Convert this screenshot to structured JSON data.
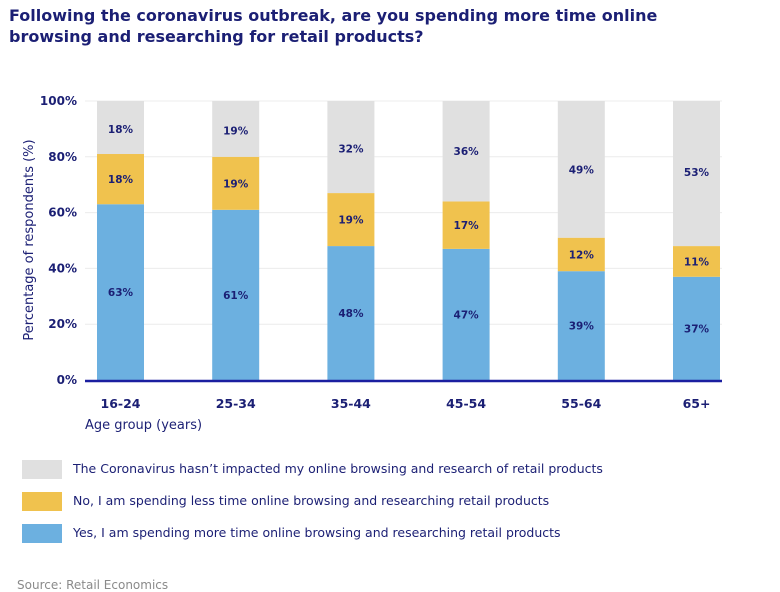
{
  "chart_data": {
    "type": "bar",
    "stacked": true,
    "title": "Following the coronavirus outbreak, are you spending more time online browsing and researching for retail products?",
    "xlabel": "Age group (years)",
    "ylabel": "Percentage of respondents (%)",
    "ylim": [
      0,
      100
    ],
    "yticks": [
      "0%",
      "20%",
      "40%",
      "60%",
      "80%",
      "100%"
    ],
    "grid": true,
    "legend_position": "bottom",
    "categories": [
      "16-24",
      "25-34",
      "35-44",
      "45-54",
      "55-64",
      "65+"
    ],
    "series": [
      {
        "name": "Yes, I am spending more time online browsing and researching retail products",
        "color": "#6cb0e0",
        "values": [
          63,
          61,
          48,
          47,
          39,
          37
        ]
      },
      {
        "name": "No, I am spending less time online browsing and researching retail products",
        "color": "#f0c24e",
        "values": [
          18,
          19,
          19,
          17,
          12,
          11
        ]
      },
      {
        "name": "The Coronavirus hasn’t impacted my online browsing and research of retail products",
        "color": "#e0e0e0",
        "values": [
          18,
          19,
          32,
          36,
          49,
          53
        ]
      }
    ]
  },
  "source": "Source: Retail Economics"
}
